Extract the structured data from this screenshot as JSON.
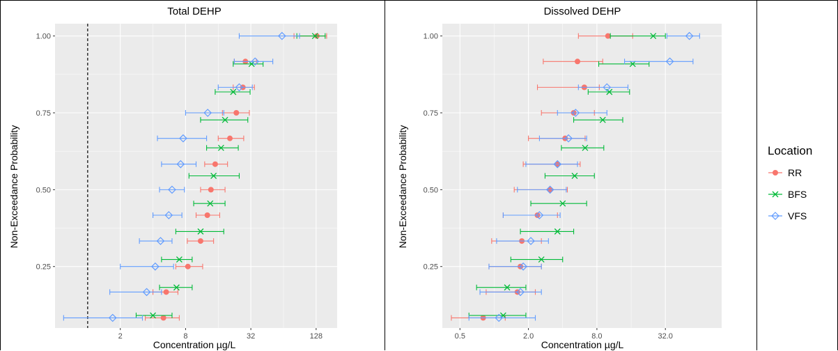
{
  "colors": {
    "RR": "#F8766D",
    "BFS": "#00BA38",
    "VFS": "#619CFF",
    "panel_bg": "#EBEBEB",
    "grid": "#FFFFFF"
  },
  "legend": {
    "title": "Location",
    "entries": [
      {
        "key": "RR",
        "label": "RR",
        "marker": "circle"
      },
      {
        "key": "BFS",
        "label": "BFS",
        "marker": "x"
      },
      {
        "key": "VFS",
        "label": "VFS",
        "marker": "diamond"
      }
    ]
  },
  "chart_data": [
    {
      "type": "scatter",
      "title": "Total DEHP",
      "xlabel": "Concentration µg/L",
      "ylabel": "Non-Exceedance Probability",
      "x_scale": "log2",
      "xlim": [
        0.5,
        200
      ],
      "ylim": [
        0.05,
        1.04
      ],
      "x_ticks": [
        2,
        8,
        32,
        128
      ],
      "x_tick_labels": [
        "2",
        "8",
        "32",
        "128"
      ],
      "y_ticks": [
        0.25,
        0.5,
        0.75,
        1.0
      ],
      "y_tick_labels": [
        "0.25",
        "0.50",
        "0.75",
        "1.00"
      ],
      "vline": 1.0,
      "grid": true,
      "series": [
        {
          "name": "RR",
          "points": [
            {
              "p": 0.083,
              "x": 5.0,
              "lo": 3.4,
              "hi": 7.0
            },
            {
              "p": 0.167,
              "x": 5.3,
              "lo": 4.0,
              "hi": 6.8
            },
            {
              "p": 0.25,
              "x": 8.4,
              "lo": 6.5,
              "hi": 11.5
            },
            {
              "p": 0.333,
              "x": 11.0,
              "lo": 8.3,
              "hi": 14.5
            },
            {
              "p": 0.417,
              "x": 12.7,
              "lo": 10.0,
              "hi": 16.5
            },
            {
              "p": 0.5,
              "x": 13.7,
              "lo": 11.0,
              "hi": 18.5
            },
            {
              "p": 0.583,
              "x": 15.0,
              "lo": 12.0,
              "hi": 19.5
            },
            {
              "p": 0.667,
              "x": 20.5,
              "lo": 16.0,
              "hi": 27.5
            },
            {
              "p": 0.75,
              "x": 23.5,
              "lo": 17.5,
              "hi": 31.0
            },
            {
              "p": 0.833,
              "x": 27.0,
              "lo": 22.0,
              "hi": 34.5
            },
            {
              "p": 0.917,
              "x": 28.5,
              "lo": 22.5,
              "hi": 36.0
            },
            {
              "p": 1.0,
              "x": 130.0,
              "lo": 80.0,
              "hi": 160.0
            }
          ]
        },
        {
          "name": "BFS",
          "points": [
            {
              "p": 0.091,
              "x": 4.0,
              "lo": 2.8,
              "hi": 6.0
            },
            {
              "p": 0.182,
              "x": 6.6,
              "lo": 4.6,
              "hi": 9.2
            },
            {
              "p": 0.273,
              "x": 7.0,
              "lo": 4.8,
              "hi": 9.2
            },
            {
              "p": 0.364,
              "x": 11.0,
              "lo": 6.5,
              "hi": 18.0
            },
            {
              "p": 0.455,
              "x": 13.5,
              "lo": 9.5,
              "hi": 18.5
            },
            {
              "p": 0.545,
              "x": 14.5,
              "lo": 8.6,
              "hi": 25.0
            },
            {
              "p": 0.636,
              "x": 17.0,
              "lo": 12.5,
              "hi": 24.5
            },
            {
              "p": 0.727,
              "x": 18.5,
              "lo": 11.0,
              "hi": 30.0
            },
            {
              "p": 0.818,
              "x": 22.0,
              "lo": 15.0,
              "hi": 31.5
            },
            {
              "p": 0.909,
              "x": 32.5,
              "lo": 22.0,
              "hi": 41.5
            },
            {
              "p": 1.0,
              "x": 125.0,
              "lo": 85.0,
              "hi": 155.0
            }
          ]
        },
        {
          "name": "VFS",
          "points": [
            {
              "p": 0.083,
              "x": 1.7,
              "lo": 0.6,
              "hi": 3.2
            },
            {
              "p": 0.167,
              "x": 3.5,
              "lo": 1.6,
              "hi": 4.8
            },
            {
              "p": 0.25,
              "x": 4.2,
              "lo": 2.0,
              "hi": 6.2
            },
            {
              "p": 0.333,
              "x": 4.7,
              "lo": 3.0,
              "hi": 6.0
            },
            {
              "p": 0.417,
              "x": 5.6,
              "lo": 4.0,
              "hi": 7.4
            },
            {
              "p": 0.5,
              "x": 6.0,
              "lo": 4.6,
              "hi": 7.8
            },
            {
              "p": 0.583,
              "x": 7.2,
              "lo": 4.8,
              "hi": 10.0
            },
            {
              "p": 0.667,
              "x": 7.6,
              "lo": 4.4,
              "hi": 12.5
            },
            {
              "p": 0.75,
              "x": 12.8,
              "lo": 8.0,
              "hi": 18.0
            },
            {
              "p": 0.833,
              "x": 25.0,
              "lo": 16.0,
              "hi": 33.0
            },
            {
              "p": 0.917,
              "x": 35.0,
              "lo": 22.5,
              "hi": 51.0
            },
            {
              "p": 1.0,
              "x": 62.0,
              "lo": 25.0,
              "hi": 90.0
            }
          ]
        }
      ]
    },
    {
      "type": "scatter",
      "title": "Dissolved DEHP",
      "xlabel": "Concentration µg/L",
      "ylabel": "Non-Exceedance Probability",
      "x_scale": "log2",
      "xlim": [
        0.35,
        100
      ],
      "ylim": [
        0.05,
        1.04
      ],
      "x_ticks": [
        0.5,
        2.0,
        8.0,
        32.0
      ],
      "x_tick_labels": [
        "0.5",
        "2.0",
        "8.0",
        "32.0"
      ],
      "y_ticks": [
        0.25,
        0.5,
        0.75,
        1.0
      ],
      "y_tick_labels": [
        "0.25",
        "0.50",
        "0.75",
        "1.00"
      ],
      "grid": true,
      "series": [
        {
          "name": "RR",
          "points": [
            {
              "p": 0.083,
              "x": 0.8,
              "lo": 0.42,
              "hi": 1.25
            },
            {
              "p": 0.167,
              "x": 1.6,
              "lo": 0.85,
              "hi": 2.3
            },
            {
              "p": 0.25,
              "x": 1.7,
              "lo": 0.9,
              "hi": 2.6
            },
            {
              "p": 0.333,
              "x": 1.75,
              "lo": 0.95,
              "hi": 2.6
            },
            {
              "p": 0.417,
              "x": 2.4,
              "lo": 1.2,
              "hi": 3.6
            },
            {
              "p": 0.5,
              "x": 3.1,
              "lo": 1.5,
              "hi": 4.4
            },
            {
              "p": 0.583,
              "x": 3.6,
              "lo": 1.8,
              "hi": 5.7
            },
            {
              "p": 0.667,
              "x": 4.2,
              "lo": 2.0,
              "hi": 6.3
            },
            {
              "p": 0.75,
              "x": 5.0,
              "lo": 2.6,
              "hi": 7.6
            },
            {
              "p": 0.833,
              "x": 6.2,
              "lo": 2.4,
              "hi": 8.4
            },
            {
              "p": 0.917,
              "x": 5.4,
              "lo": 2.7,
              "hi": 9.0
            },
            {
              "p": 1.0,
              "x": 10.0,
              "lo": 5.5,
              "hi": 16.5
            }
          ]
        },
        {
          "name": "BFS",
          "points": [
            {
              "p": 0.091,
              "x": 1.2,
              "lo": 0.6,
              "hi": 1.9
            },
            {
              "p": 0.182,
              "x": 1.3,
              "lo": 0.7,
              "hi": 1.9
            },
            {
              "p": 0.273,
              "x": 2.6,
              "lo": 1.4,
              "hi": 4.0
            },
            {
              "p": 0.364,
              "x": 3.6,
              "lo": 1.7,
              "hi": 5.0
            },
            {
              "p": 0.455,
              "x": 4.0,
              "lo": 2.1,
              "hi": 6.5
            },
            {
              "p": 0.545,
              "x": 5.1,
              "lo": 2.8,
              "hi": 7.6
            },
            {
              "p": 0.636,
              "x": 6.3,
              "lo": 3.9,
              "hi": 9.2
            },
            {
              "p": 0.727,
              "x": 9.0,
              "lo": 5.0,
              "hi": 13.5
            },
            {
              "p": 0.818,
              "x": 10.3,
              "lo": 6.7,
              "hi": 15.5
            },
            {
              "p": 0.909,
              "x": 16.5,
              "lo": 8.3,
              "hi": 23.0
            },
            {
              "p": 1.0,
              "x": 25.0,
              "lo": 10.5,
              "hi": 32.0
            }
          ]
        },
        {
          "name": "VFS",
          "points": [
            {
              "p": 0.083,
              "x": 1.1,
              "lo": 0.6,
              "hi": 2.3
            },
            {
              "p": 0.167,
              "x": 1.7,
              "lo": 0.75,
              "hi": 2.6
            },
            {
              "p": 0.25,
              "x": 1.8,
              "lo": 0.9,
              "hi": 2.6
            },
            {
              "p": 0.333,
              "x": 2.1,
              "lo": 1.05,
              "hi": 3.0
            },
            {
              "p": 0.417,
              "x": 2.5,
              "lo": 1.2,
              "hi": 3.8
            },
            {
              "p": 0.5,
              "x": 3.1,
              "lo": 1.6,
              "hi": 4.3
            },
            {
              "p": 0.583,
              "x": 3.6,
              "lo": 1.9,
              "hi": 5.4
            },
            {
              "p": 0.667,
              "x": 4.5,
              "lo": 2.5,
              "hi": 6.5
            },
            {
              "p": 0.75,
              "x": 5.2,
              "lo": 3.6,
              "hi": 9.8
            },
            {
              "p": 0.833,
              "x": 9.8,
              "lo": 5.5,
              "hi": 15.0
            },
            {
              "p": 0.917,
              "x": 35.0,
              "lo": 14.0,
              "hi": 56.0
            },
            {
              "p": 1.0,
              "x": 52.0,
              "lo": 33.0,
              "hi": 64.0
            }
          ]
        }
      ]
    }
  ]
}
